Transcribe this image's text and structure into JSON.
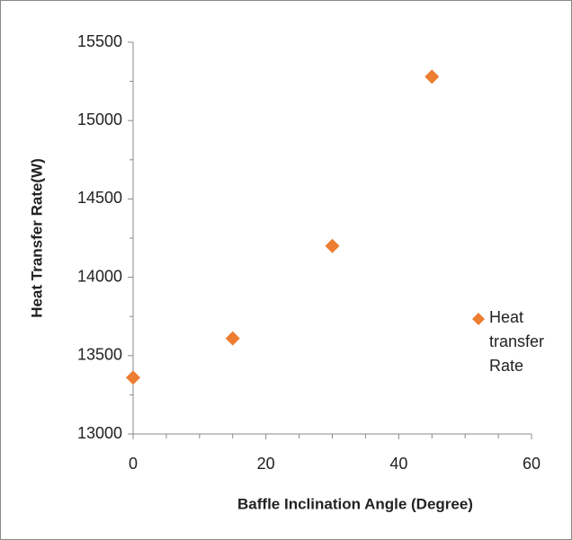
{
  "chart_data": {
    "type": "scatter",
    "x_label": "Baffle Inclination Angle (Degree)",
    "y_label": "Heat Transfer Rate(W)",
    "series": [
      {
        "name": "Heat transfer Rate",
        "color": "#ed7d31",
        "x": [
          0,
          15,
          30,
          45
        ],
        "values": [
          13360,
          13610,
          14200,
          15280
        ]
      }
    ],
    "xlim": [
      0,
      60
    ],
    "xticks": [
      0,
      20,
      40,
      60
    ],
    "ylim": [
      13000,
      15500
    ],
    "yticks": [
      13000,
      13500,
      14000,
      14500,
      15000,
      15500
    ],
    "grid": false,
    "legend": "right"
  }
}
